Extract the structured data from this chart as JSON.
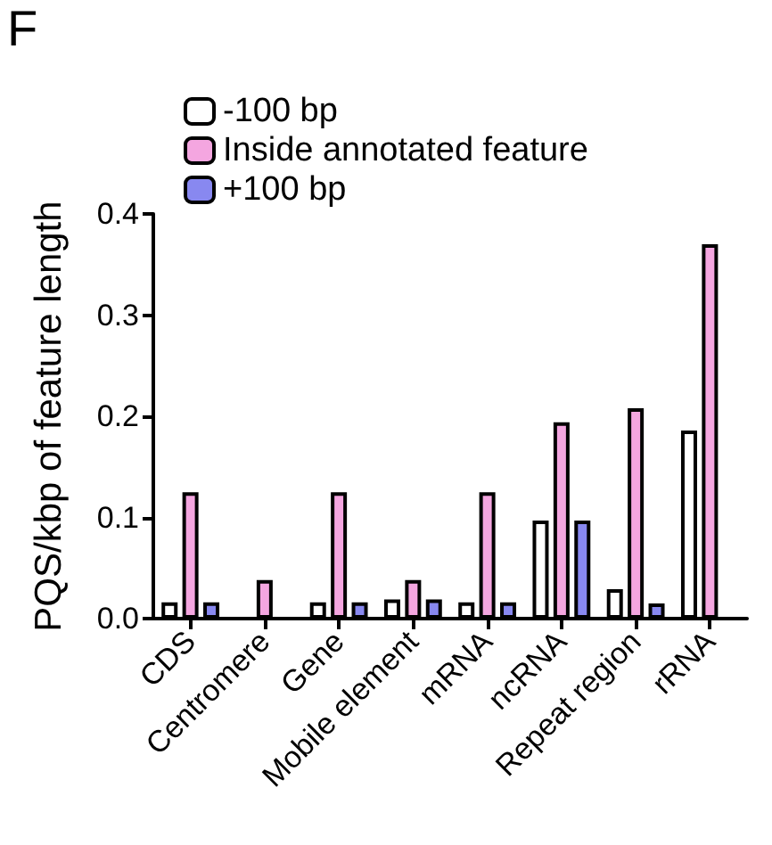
{
  "chart_data": {
    "type": "bar",
    "ylabel": "PQS/kbp of feature length",
    "annotations": [
      "F"
    ],
    "categories": [
      "CDS",
      "Centromere",
      "Gene",
      "Mobile element",
      "mRNA",
      "ncRNA",
      "Repeat region",
      "rRNA"
    ],
    "series": [
      {
        "name": "-100 bp",
        "color": "#ffffff",
        "values": [
          0.016,
          null,
          0.016,
          0.019,
          0.016,
          0.097,
          0.029,
          0.186
        ]
      },
      {
        "name": "Inside annotated feature",
        "color": "#f4a6e0",
        "values": [
          0.125,
          0.038,
          0.125,
          0.038,
          0.125,
          0.194,
          0.208,
          0.37
        ]
      },
      {
        "name": "+100 bp",
        "color": "#8888f0",
        "values": [
          0.016,
          null,
          0.016,
          0.019,
          0.016,
          0.097,
          0.015,
          null
        ]
      }
    ],
    "ylim": [
      0,
      0.4
    ],
    "yticks": [
      {
        "value": 0,
        "label": "0.0"
      },
      {
        "value": 0.1,
        "label": "0.1"
      },
      {
        "value": 0.2,
        "label": "0.2"
      },
      {
        "value": 0.3,
        "label": "0.3"
      },
      {
        "value": 0.4,
        "label": "0.4"
      }
    ],
    "grid": false,
    "legend": "top left"
  }
}
